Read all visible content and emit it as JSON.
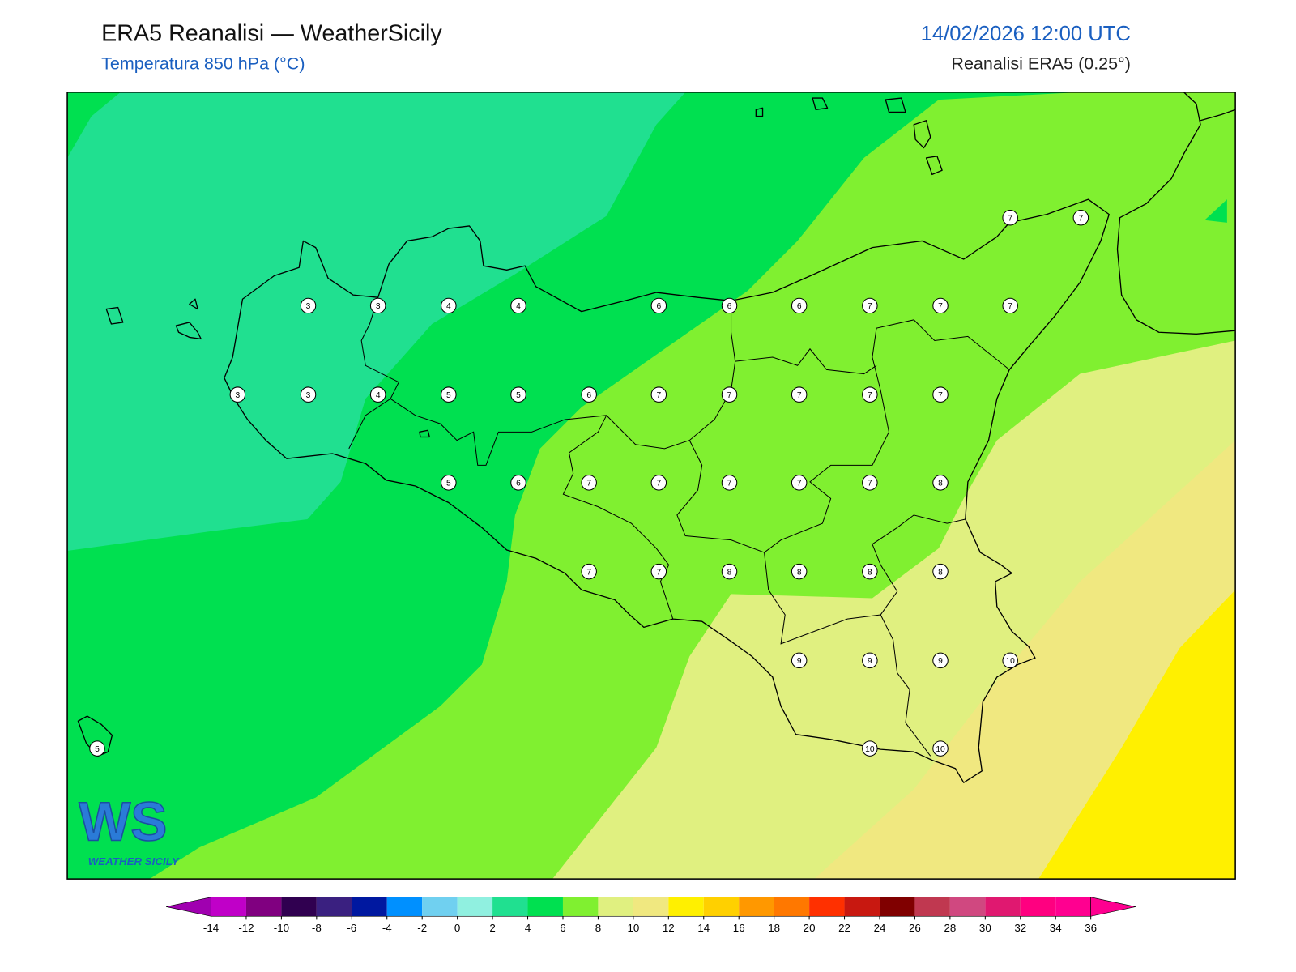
{
  "header": {
    "title": "ERA5 Reanalisi — WeatherSicily",
    "subtitle": "Temperatura 850 hPa (°C)",
    "datetime": "14/02/2026 12:00 UTC",
    "source": "Reanalisi ERA5 (0.25°)"
  },
  "stations": {
    "values": [
      7,
      7,
      3,
      3,
      4,
      4,
      6,
      6,
      6,
      7,
      7,
      7,
      3,
      3,
      4,
      5,
      5,
      6,
      7,
      7,
      7,
      7,
      7,
      5,
      6,
      7,
      7,
      7,
      7,
      7,
      8,
      7,
      7,
      8,
      8,
      8,
      8,
      9,
      9,
      9,
      10,
      5,
      10,
      10
    ]
  },
  "colorbar": {
    "ticks": [
      -14,
      -12,
      -10,
      -8,
      -6,
      -4,
      -2,
      0,
      2,
      4,
      6,
      8,
      10,
      12,
      14,
      16,
      18,
      20,
      22,
      24,
      26,
      28,
      30,
      32,
      34,
      36
    ],
    "colors": [
      "#c000c8",
      "#800080",
      "#300050",
      "#3a2080",
      "#0018a0",
      "#0090ff",
      "#70d0f0",
      "#90f0e0",
      "#20e090",
      "#00e050",
      "#80f030",
      "#e0f080",
      "#f0e880",
      "#fff000",
      "#ffd000",
      "#ff9800",
      "#ff7800",
      "#ff3000",
      "#c81810",
      "#800000",
      "#c03850",
      "#d04880",
      "#e01870",
      "#ff0080",
      "#ff0090"
    ],
    "under_color": "#a000b0",
    "over_color": "#ff0090"
  },
  "logo": {
    "mark": "WS",
    "tagline": "WEATHER SICILY"
  }
}
